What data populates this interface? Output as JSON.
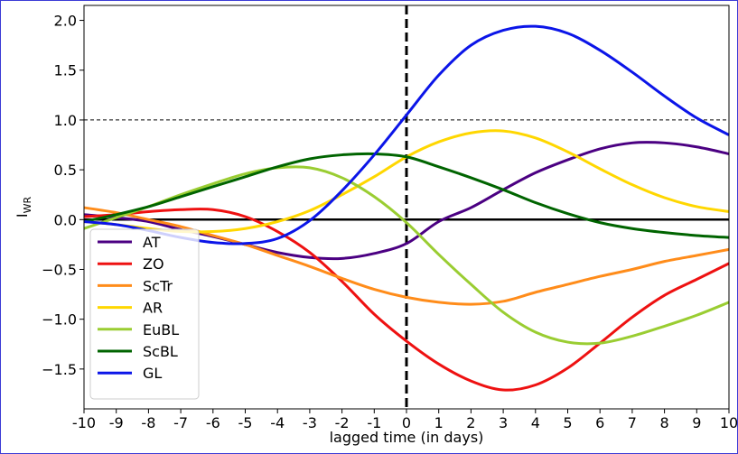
{
  "chart_data": {
    "type": "line",
    "xlabel": "lagged time (in days)",
    "ylabel": {
      "main": "I",
      "sub": "WR"
    },
    "xlim": [
      -10,
      10
    ],
    "ylim": [
      -1.9,
      2.15
    ],
    "xticks": [
      -10,
      -9,
      -8,
      -7,
      -6,
      -5,
      -4,
      -3,
      -2,
      -1,
      0,
      1,
      2,
      3,
      4,
      5,
      6,
      7,
      8,
      9,
      10
    ],
    "yticks": [
      2.0,
      1.5,
      1.0,
      0.5,
      0.0,
      -0.5,
      -1.0,
      -1.5
    ],
    "ytick_labels": [
      "2.0",
      "1.5",
      "1.0",
      "0.5",
      "0.0",
      "−0.5",
      "−1.0",
      "−1.5"
    ],
    "reference_lines": {
      "horizontal_zero": 0.0,
      "horizontal_dashed": 1.0,
      "vertical_dashed": 0
    },
    "grid": false,
    "legend_position": "lower-left",
    "series": [
      {
        "name": "AT",
        "color": "#4b0082",
        "points": [
          [
            -10,
            0.05
          ],
          [
            -9,
            0.02
          ],
          [
            -8,
            -0.02
          ],
          [
            -7,
            -0.1
          ],
          [
            -6,
            -0.17
          ],
          [
            -5,
            -0.25
          ],
          [
            -4,
            -0.33
          ],
          [
            -3,
            -0.38
          ],
          [
            -2,
            -0.39
          ],
          [
            -1,
            -0.34
          ],
          [
            0,
            -0.24
          ],
          [
            1,
            -0.02
          ],
          [
            2,
            0.12
          ],
          [
            3,
            0.3
          ],
          [
            4,
            0.47
          ],
          [
            5,
            0.6
          ],
          [
            6,
            0.71
          ],
          [
            7,
            0.77
          ],
          [
            8,
            0.77
          ],
          [
            9,
            0.73
          ],
          [
            10,
            0.66
          ]
        ]
      },
      {
        "name": "ZO",
        "color": "#ee1111",
        "points": [
          [
            -10,
            0.03
          ],
          [
            -9,
            0.05
          ],
          [
            -8,
            0.08
          ],
          [
            -7,
            0.1
          ],
          [
            -6,
            0.1
          ],
          [
            -5,
            0.03
          ],
          [
            -4,
            -0.12
          ],
          [
            -3,
            -0.33
          ],
          [
            -2,
            -0.62
          ],
          [
            -1,
            -0.95
          ],
          [
            0,
            -1.22
          ],
          [
            1,
            -1.45
          ],
          [
            2,
            -1.62
          ],
          [
            3,
            -1.71
          ],
          [
            4,
            -1.66
          ],
          [
            5,
            -1.49
          ],
          [
            6,
            -1.24
          ],
          [
            7,
            -0.98
          ],
          [
            8,
            -0.76
          ],
          [
            9,
            -0.6
          ],
          [
            10,
            -0.44
          ]
        ]
      },
      {
        "name": "ScTr",
        "color": "#ff8c1a",
        "points": [
          [
            -10,
            0.12
          ],
          [
            -9,
            0.07
          ],
          [
            -8,
            0.0
          ],
          [
            -7,
            -0.07
          ],
          [
            -6,
            -0.16
          ],
          [
            -5,
            -0.25
          ],
          [
            -4,
            -0.36
          ],
          [
            -3,
            -0.47
          ],
          [
            -2,
            -0.59
          ],
          [
            -1,
            -0.7
          ],
          [
            0,
            -0.78
          ],
          [
            1,
            -0.83
          ],
          [
            2,
            -0.85
          ],
          [
            3,
            -0.82
          ],
          [
            4,
            -0.73
          ],
          [
            5,
            -0.65
          ],
          [
            6,
            -0.57
          ],
          [
            7,
            -0.5
          ],
          [
            8,
            -0.42
          ],
          [
            9,
            -0.36
          ],
          [
            10,
            -0.3
          ]
        ]
      },
      {
        "name": "AR",
        "color": "#ffd700",
        "points": [
          [
            -10,
            -0.02
          ],
          [
            -9,
            -0.05
          ],
          [
            -8,
            -0.09
          ],
          [
            -7,
            -0.12
          ],
          [
            -6,
            -0.12
          ],
          [
            -5,
            -0.09
          ],
          [
            -4,
            -0.02
          ],
          [
            -3,
            0.09
          ],
          [
            -2,
            0.25
          ],
          [
            -1,
            0.43
          ],
          [
            0,
            0.63
          ],
          [
            1,
            0.78
          ],
          [
            2,
            0.87
          ],
          [
            3,
            0.89
          ],
          [
            4,
            0.82
          ],
          [
            5,
            0.68
          ],
          [
            6,
            0.51
          ],
          [
            7,
            0.35
          ],
          [
            8,
            0.22
          ],
          [
            9,
            0.13
          ],
          [
            10,
            0.08
          ]
        ]
      },
      {
        "name": "EuBL",
        "color": "#9acd32",
        "points": [
          [
            -10,
            -0.09
          ],
          [
            -9,
            0.02
          ],
          [
            -8,
            0.13
          ],
          [
            -7,
            0.25
          ],
          [
            -6,
            0.36
          ],
          [
            -5,
            0.46
          ],
          [
            -4,
            0.52
          ],
          [
            -3,
            0.52
          ],
          [
            -2,
            0.42
          ],
          [
            -1,
            0.23
          ],
          [
            0,
            -0.03
          ],
          [
            1,
            -0.35
          ],
          [
            2,
            -0.65
          ],
          [
            3,
            -0.93
          ],
          [
            4,
            -1.13
          ],
          [
            5,
            -1.23
          ],
          [
            6,
            -1.24
          ],
          [
            7,
            -1.17
          ],
          [
            8,
            -1.07
          ],
          [
            9,
            -0.96
          ],
          [
            10,
            -0.83
          ]
        ]
      },
      {
        "name": "ScBL",
        "color": "#006400",
        "points": [
          [
            -10,
            -0.02
          ],
          [
            -9,
            0.05
          ],
          [
            -8,
            0.13
          ],
          [
            -7,
            0.23
          ],
          [
            -6,
            0.33
          ],
          [
            -5,
            0.43
          ],
          [
            -4,
            0.53
          ],
          [
            -3,
            0.61
          ],
          [
            -2,
            0.65
          ],
          [
            -1,
            0.66
          ],
          [
            0,
            0.63
          ],
          [
            1,
            0.53
          ],
          [
            2,
            0.42
          ],
          [
            3,
            0.3
          ],
          [
            4,
            0.17
          ],
          [
            5,
            0.06
          ],
          [
            6,
            -0.03
          ],
          [
            7,
            -0.09
          ],
          [
            8,
            -0.13
          ],
          [
            9,
            -0.16
          ],
          [
            10,
            -0.18
          ]
        ]
      },
      {
        "name": "GL",
        "color": "#0b15e8",
        "points": [
          [
            -10,
            -0.02
          ],
          [
            -9,
            -0.05
          ],
          [
            -8,
            -0.11
          ],
          [
            -7,
            -0.18
          ],
          [
            -6,
            -0.23
          ],
          [
            -5,
            -0.24
          ],
          [
            -4,
            -0.19
          ],
          [
            -3,
            -0.01
          ],
          [
            -2,
            0.29
          ],
          [
            -1,
            0.65
          ],
          [
            0,
            1.05
          ],
          [
            1,
            1.45
          ],
          [
            2,
            1.75
          ],
          [
            3,
            1.9
          ],
          [
            4,
            1.94
          ],
          [
            5,
            1.87
          ],
          [
            6,
            1.7
          ],
          [
            7,
            1.48
          ],
          [
            8,
            1.24
          ],
          [
            9,
            1.02
          ],
          [
            10,
            0.85
          ]
        ]
      }
    ]
  }
}
